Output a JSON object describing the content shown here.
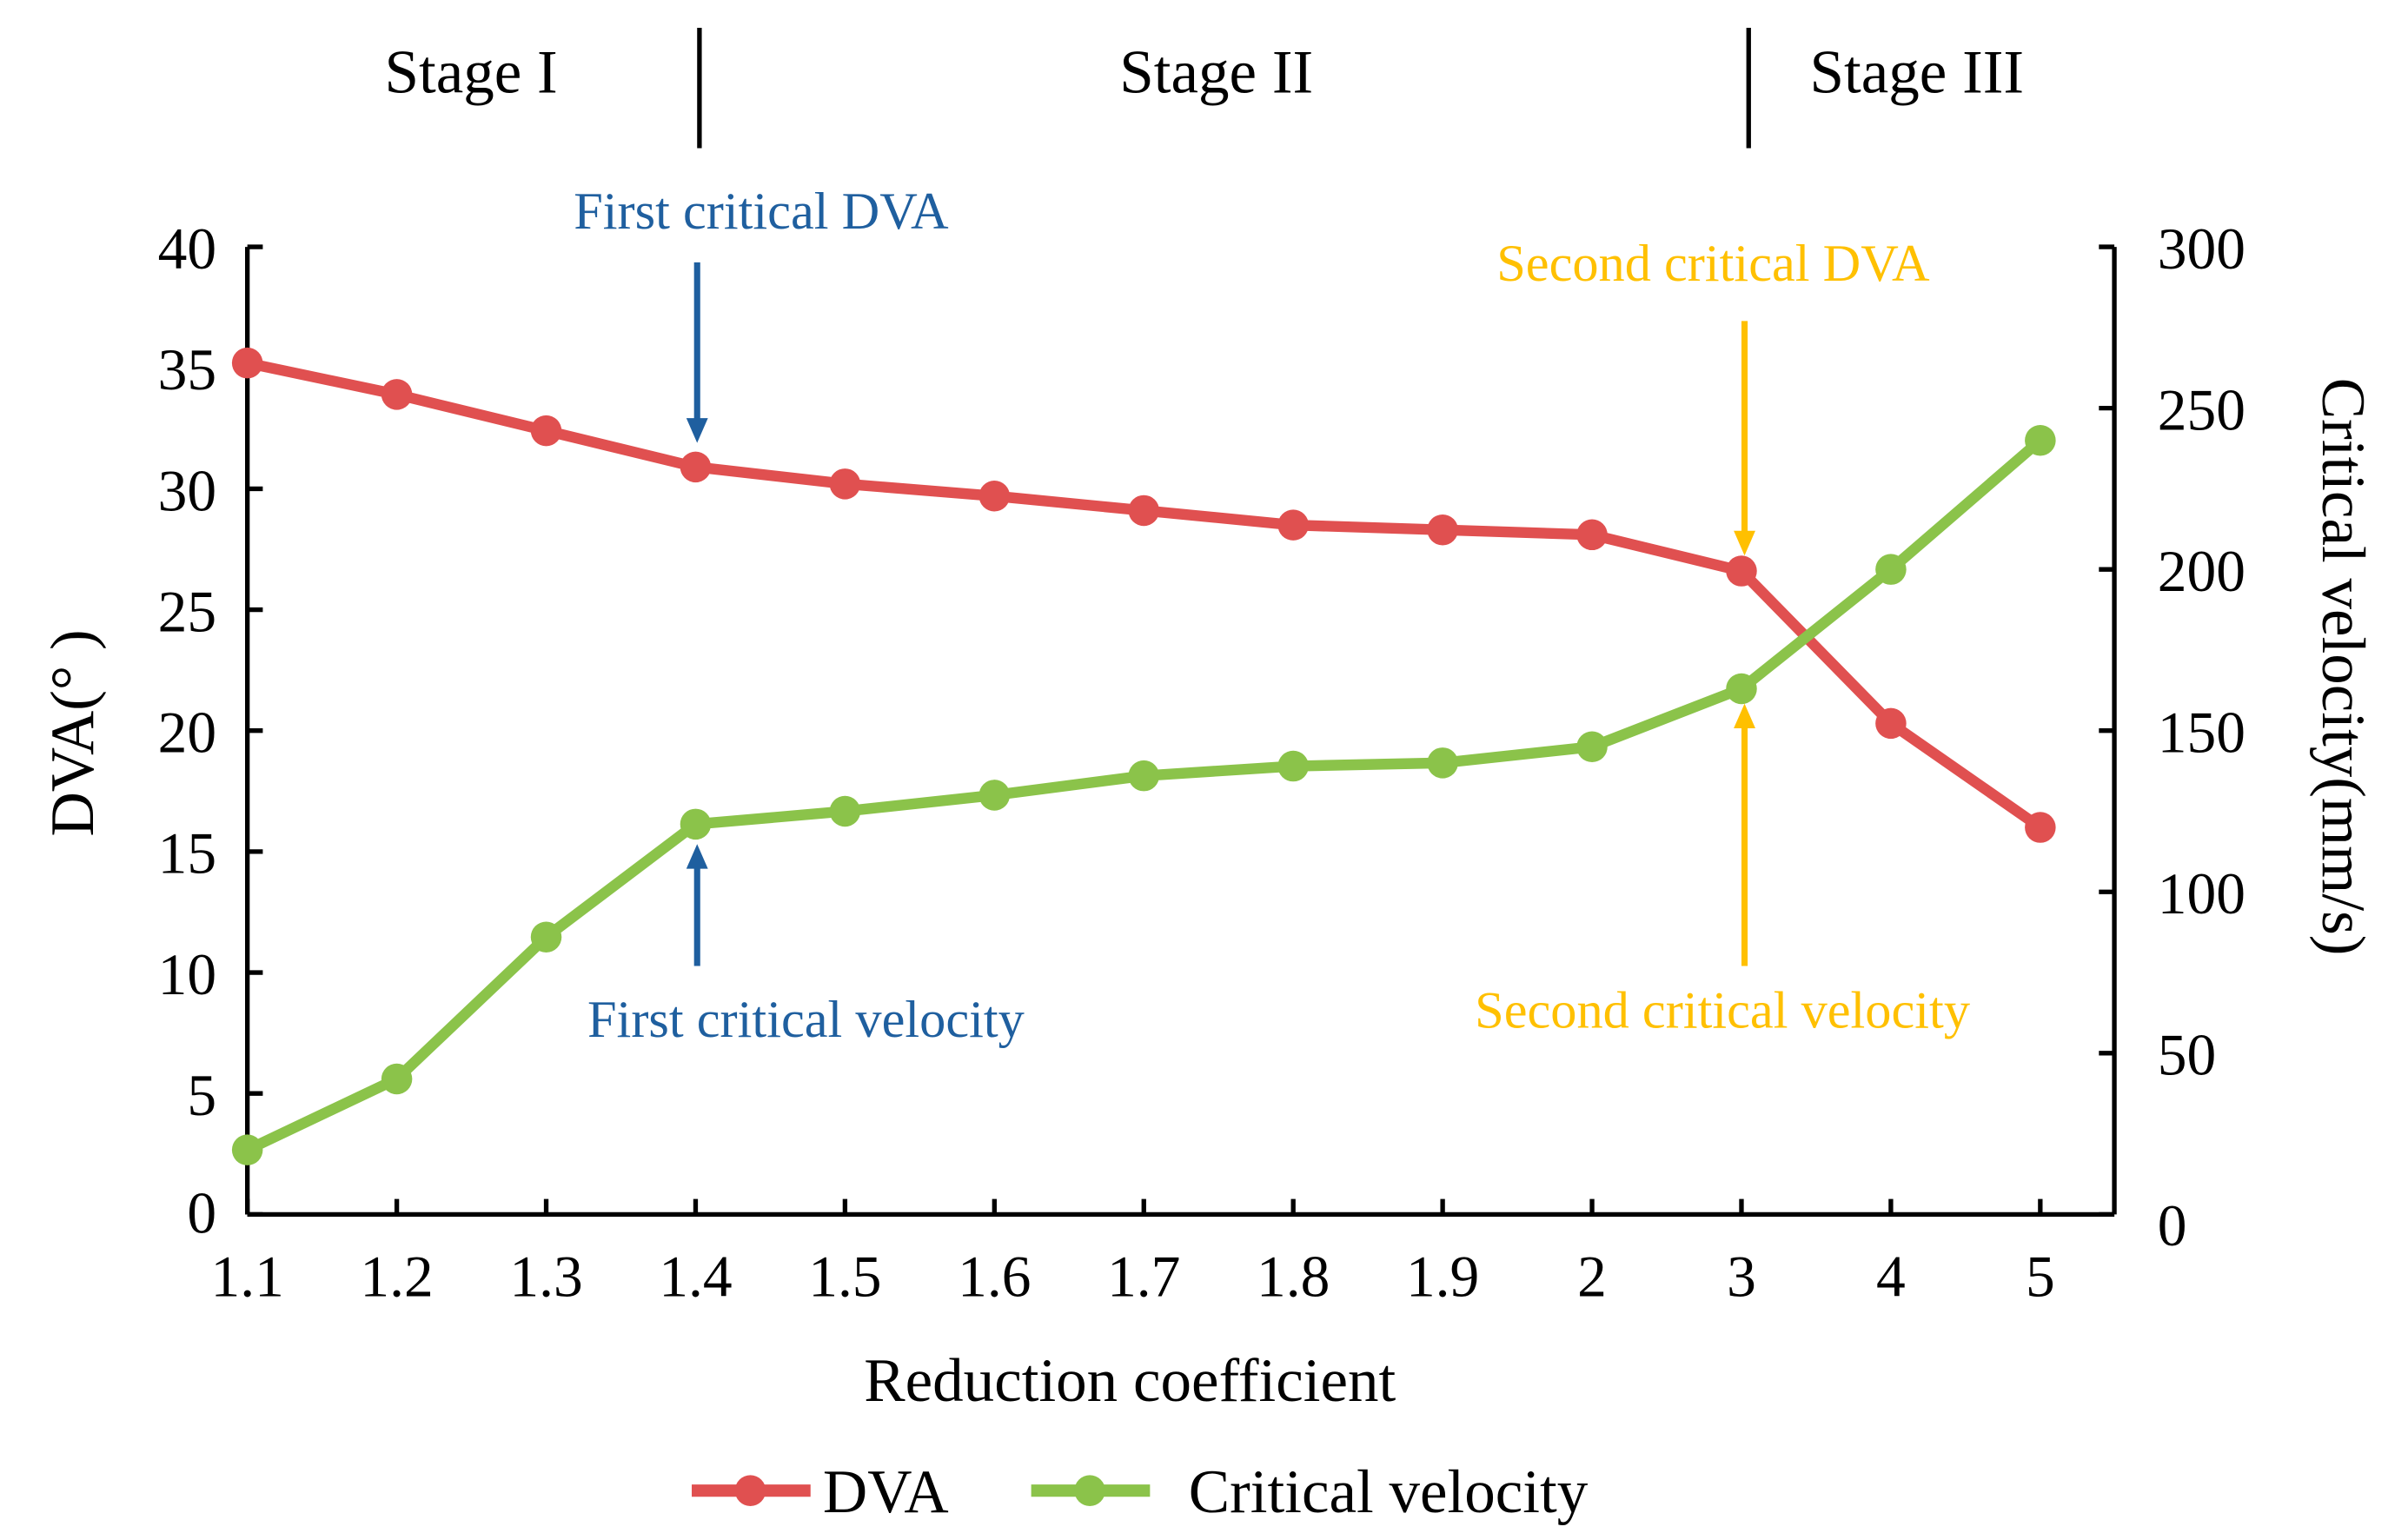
{
  "chart_data": {
    "type": "line",
    "xlabel": "Reduction coefficient",
    "ylabel_left": "DVA(° )",
    "ylabel_right": "Critical velocity(mm/s)",
    "categories": [
      "1.1",
      "1.2",
      "1.3",
      "1.4",
      "1.5",
      "1.6",
      "1.7",
      "1.8",
      "1.9",
      "2",
      "3",
      "4",
      "5"
    ],
    "ylim_left": [
      0,
      40
    ],
    "yticks_left": [
      "0",
      "5",
      "10",
      "15",
      "20",
      "25",
      "30",
      "35",
      "40"
    ],
    "ylim_right": [
      0,
      300
    ],
    "yticks_right": [
      "0",
      "50",
      "100",
      "150",
      "200",
      "250",
      "300"
    ],
    "series": [
      {
        "name": "DVA",
        "axis": "left",
        "color": "#e05050",
        "values": [
          35.2,
          33.9,
          32.4,
          30.9,
          30.2,
          29.7,
          29.1,
          28.5,
          28.3,
          28.1,
          26.6,
          20.3,
          16.0
        ]
      },
      {
        "name": "Critical velocity",
        "axis": "right",
        "color": "#8bc34a",
        "values": [
          20,
          42,
          86,
          121,
          125,
          130,
          136,
          139,
          140,
          145,
          163,
          200,
          240
        ]
      }
    ],
    "stages": [
      "Stage I",
      "Stage II",
      "Stage III"
    ],
    "annotations": [
      {
        "text": "First critical DVA",
        "color": "#1f5f9f",
        "at": "1.4"
      },
      {
        "text": "First critical velocity",
        "color": "#1f5f9f",
        "at": "1.4"
      },
      {
        "text": "Second critical DVA",
        "color": "#ffc000",
        "at": "3"
      },
      {
        "text": "Second critical velocity",
        "color": "#ffc000",
        "at": "3"
      }
    ],
    "legend_position": "bottom-center",
    "grid": false
  }
}
